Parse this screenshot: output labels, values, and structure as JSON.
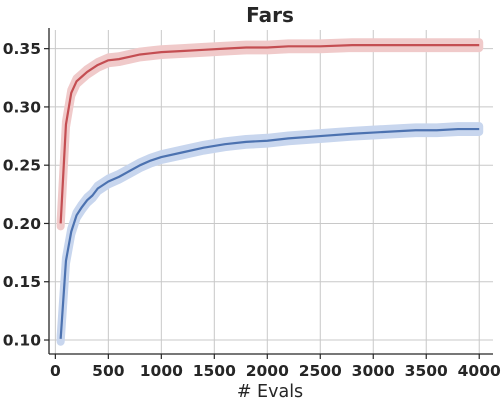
{
  "chart_data": {
    "type": "line",
    "title": "Fars",
    "xlabel": "# Evals",
    "ylabel": "",
    "xlim": [
      -60,
      4130
    ],
    "ylim": [
      0.088,
      0.366
    ],
    "grid": true,
    "legend": "none",
    "xticks": [
      0,
      500,
      1000,
      1500,
      2000,
      2500,
      3000,
      3500,
      4000
    ],
    "xtick_labels": [
      "0",
      "500",
      "1000",
      "1500",
      "2000",
      "2500",
      "3000",
      "3500",
      "4000"
    ],
    "yticks": [
      0.1,
      0.15,
      0.2,
      0.25,
      0.3,
      0.35
    ],
    "ytick_labels": [
      "0.10",
      "0.15",
      "0.20",
      "0.25",
      "0.30",
      "0.35"
    ],
    "series": [
      {
        "color": "#c44e52",
        "band_color": "#f0caca",
        "band_halfwidth": 0.0025,
        "x": [
          50,
          100,
          150,
          200,
          250,
          300,
          400,
          500,
          600,
          700,
          800,
          900,
          1000,
          1200,
          1400,
          1600,
          1800,
          2000,
          2200,
          2500,
          2800,
          3000,
          3300,
          3600,
          4000
        ],
        "y": [
          0.2,
          0.285,
          0.312,
          0.322,
          0.326,
          0.33,
          0.336,
          0.34,
          0.341,
          0.343,
          0.345,
          0.346,
          0.347,
          0.348,
          0.349,
          0.35,
          0.351,
          0.351,
          0.352,
          0.352,
          0.353,
          0.353,
          0.353,
          0.353,
          0.353
        ]
      },
      {
        "color": "#4c72b0",
        "band_color": "#c8d6ee",
        "band_halfwidth": 0.0025,
        "x": [
          50,
          100,
          150,
          200,
          250,
          300,
          350,
          400,
          500,
          600,
          700,
          800,
          900,
          1000,
          1200,
          1400,
          1600,
          1800,
          2000,
          2200,
          2500,
          2800,
          3000,
          3200,
          3400,
          3600,
          3800,
          4000
        ],
        "y": [
          0.101,
          0.168,
          0.193,
          0.207,
          0.214,
          0.22,
          0.224,
          0.23,
          0.236,
          0.24,
          0.245,
          0.25,
          0.254,
          0.257,
          0.261,
          0.265,
          0.268,
          0.27,
          0.271,
          0.273,
          0.275,
          0.277,
          0.278,
          0.279,
          0.28,
          0.28,
          0.281,
          0.281
        ]
      }
    ]
  }
}
